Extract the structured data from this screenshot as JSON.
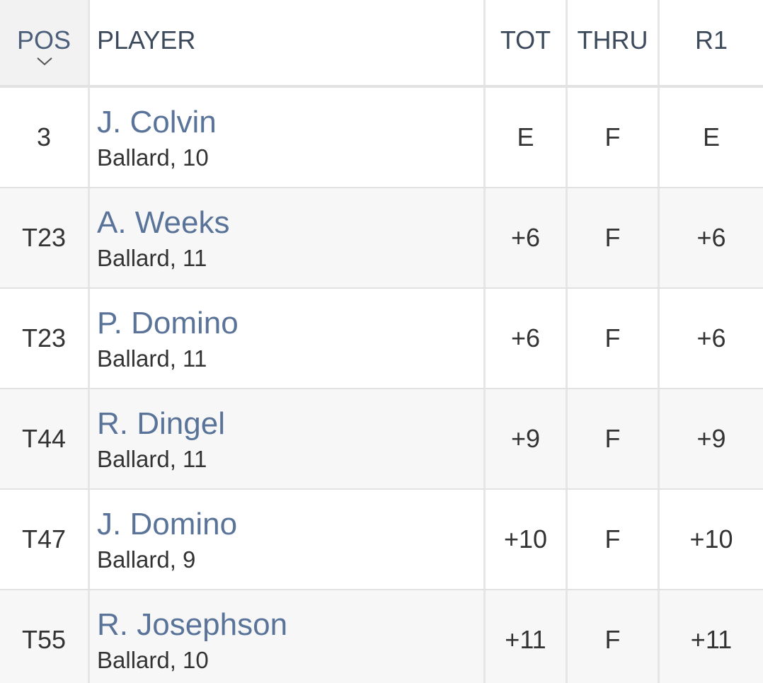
{
  "table": {
    "columns": [
      "POS",
      "PLAYER",
      "TOT",
      "THRU",
      "R1"
    ],
    "rows": [
      {
        "pos": "3",
        "player": "J. Colvin",
        "school": "Ballard, 10",
        "tot": "E",
        "thru": "F",
        "r1": "E"
      },
      {
        "pos": "T23",
        "player": "A. Weeks",
        "school": "Ballard, 11",
        "tot": "+6",
        "thru": "F",
        "r1": "+6"
      },
      {
        "pos": "T23",
        "player": "P. Domino",
        "school": "Ballard, 11",
        "tot": "+6",
        "thru": "F",
        "r1": "+6"
      },
      {
        "pos": "T44",
        "player": "R. Dingel",
        "school": "Ballard, 11",
        "tot": "+9",
        "thru": "F",
        "r1": "+9"
      },
      {
        "pos": "T47",
        "player": "J. Domino",
        "school": "Ballard, 9",
        "tot": "+10",
        "thru": "F",
        "r1": "+10"
      },
      {
        "pos": "T55",
        "player": "R. Josephson",
        "school": "Ballard, 10",
        "tot": "+11",
        "thru": "F",
        "r1": "+11"
      }
    ]
  }
}
